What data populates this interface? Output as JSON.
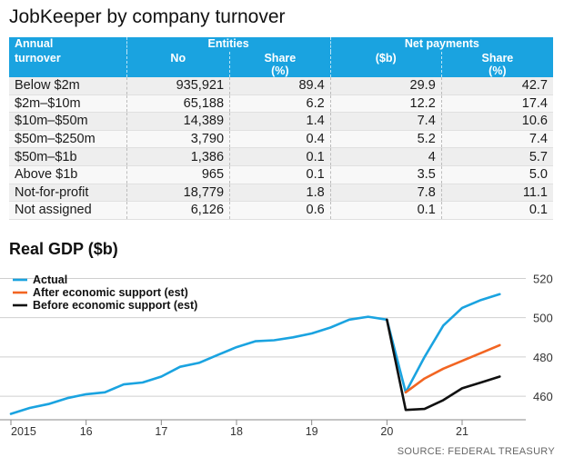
{
  "title": "JobKeeper by company turnover",
  "table": {
    "headers": {
      "turnover_line1": "Annual",
      "turnover_line2": "turnover",
      "entities": "Entities",
      "net_payments": "Net payments",
      "no": "No",
      "share1": "Share",
      "share1_unit": "(%)",
      "sb": "($b)",
      "share2": "Share",
      "share2_unit": "(%)"
    },
    "rows": [
      {
        "turnover": "Below $2m",
        "no": "935,921",
        "share": "89.4",
        "payments": "29.9",
        "pshare": "42.7"
      },
      {
        "turnover": "$2m–$10m",
        "no": "65,188",
        "share": "6.2",
        "payments": "12.2",
        "pshare": "17.4"
      },
      {
        "turnover": "$10m–$50m",
        "no": "14,389",
        "share": "1.4",
        "payments": "7.4",
        "pshare": "10.6"
      },
      {
        "turnover": "$50m–$250m",
        "no": "3,790",
        "share": "0.4",
        "payments": "5.2",
        "pshare": "7.4"
      },
      {
        "turnover": "$50m–$1b",
        "no": "1,386",
        "share": "0.1",
        "payments": "4",
        "pshare": "5.7"
      },
      {
        "turnover": "Above $1b",
        "no": "965",
        "share": "0.1",
        "payments": "3.5",
        "pshare": "5.0"
      },
      {
        "turnover": "Not-for-profit",
        "no": "18,779",
        "share": "1.8",
        "payments": "7.8",
        "pshare": "11.1"
      },
      {
        "turnover": "Not assigned",
        "no": "6,126",
        "share": "0.6",
        "payments": "0.1",
        "pshare": "0.1"
      }
    ]
  },
  "chart_data": {
    "type": "line",
    "title": "Real GDP ($b)",
    "xlabel": "",
    "ylabel": "",
    "x_ticks": [
      "2015",
      "16",
      "17",
      "18",
      "19",
      "20",
      "21"
    ],
    "y_ticks": [
      460,
      480,
      500,
      520
    ],
    "ylim": [
      448,
      523
    ],
    "xlim": [
      2015,
      2021.75
    ],
    "grid": "horizontal",
    "legend_position": "top-left",
    "series": [
      {
        "name": "Actual",
        "color": "#1aa3e0",
        "x": [
          2015.0,
          2015.25,
          2015.5,
          2015.75,
          2016.0,
          2016.25,
          2016.5,
          2016.75,
          2017.0,
          2017.25,
          2017.5,
          2017.75,
          2018.0,
          2018.25,
          2018.5,
          2018.75,
          2019.0,
          2019.25,
          2019.5,
          2019.75,
          2020.0,
          2020.25,
          2020.5,
          2020.75,
          2021.0,
          2021.25,
          2021.5
        ],
        "y": [
          451,
          454,
          456,
          459,
          461,
          462,
          466,
          467,
          470,
          475,
          477,
          481,
          485,
          488,
          488.5,
          490,
          492,
          495,
          499,
          500.5,
          499,
          462,
          480,
          496,
          505,
          509,
          512
        ]
      },
      {
        "name": "After economic support (est)",
        "color": "#f26522",
        "x": [
          2020.25,
          2020.5,
          2020.75,
          2021.0,
          2021.25,
          2021.5
        ],
        "y": [
          462,
          469,
          474,
          478,
          482,
          486
        ]
      },
      {
        "name": "Before economic support (est)",
        "color": "#111111",
        "x": [
          2020.0,
          2020.25,
          2020.5,
          2020.75,
          2021.0,
          2021.25,
          2021.5
        ],
        "y": [
          499,
          453,
          453.5,
          458,
          464,
          467,
          470
        ]
      }
    ]
  },
  "source": "SOURCE: FEDERAL TREASURY"
}
